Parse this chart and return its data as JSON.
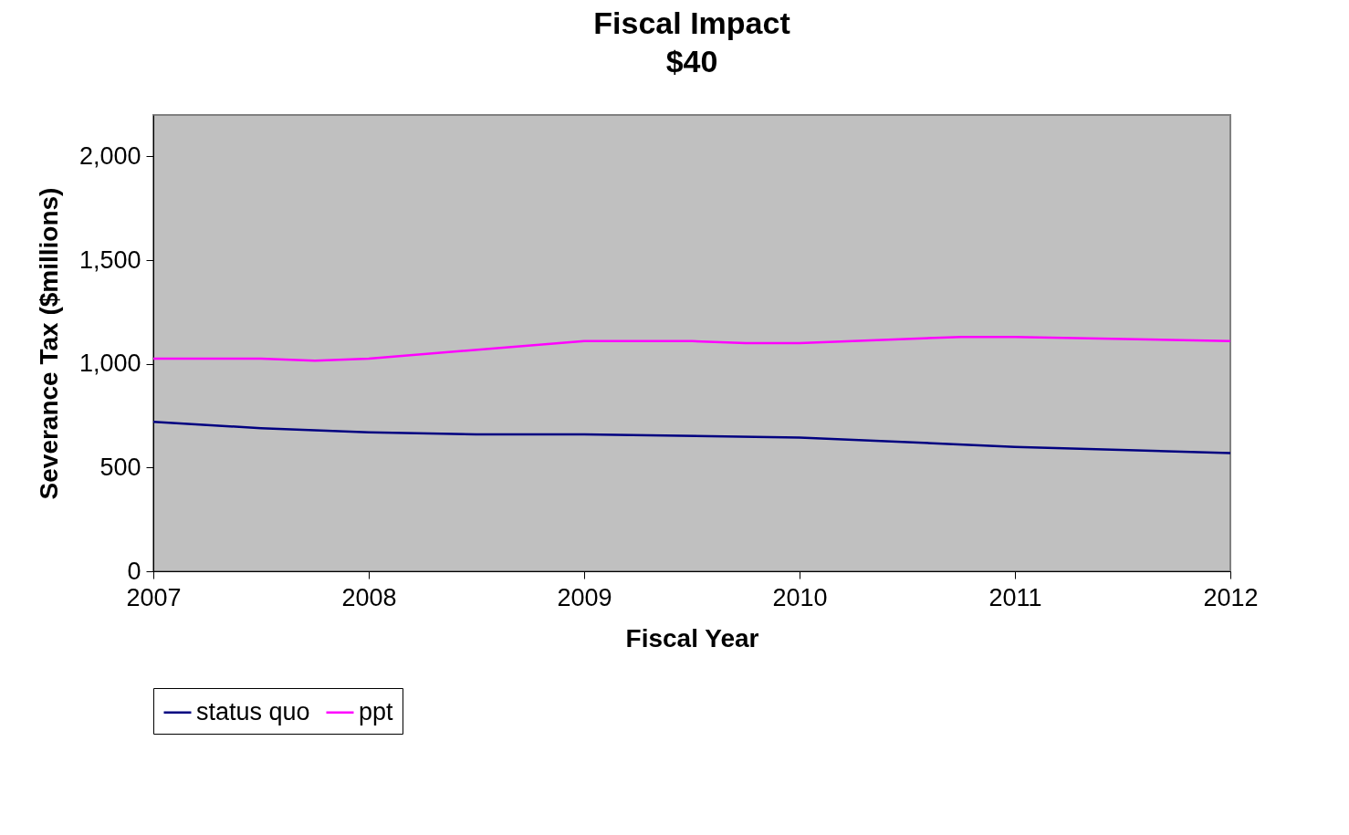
{
  "chart_data": {
    "type": "line",
    "title": "Fiscal Impact",
    "subtitle": "$40",
    "xlabel": "Fiscal Year",
    "ylabel": "Severance Tax ($millions)",
    "xlim": [
      2007,
      2012
    ],
    "xticks": [
      2007,
      2008,
      2009,
      2010,
      2011,
      2012
    ],
    "ylim": [
      0,
      2200
    ],
    "yticks": [
      0,
      {
        "value": 500,
        "label": "500"
      },
      {
        "value": 1000,
        "label": "1,000"
      },
      {
        "value": 1500,
        "label": "1,500"
      },
      {
        "value": 2000,
        "label": "2,000"
      }
    ],
    "grid": false,
    "legend": "bottom",
    "series": [
      {
        "name": "status quo",
        "color": "#000080",
        "x": [
          2007,
          2007.5,
          2008,
          2008.5,
          2009,
          2010,
          2011,
          2012
        ],
        "values": [
          720,
          690,
          670,
          660,
          660,
          645,
          600,
          570
        ]
      },
      {
        "name": "ppt",
        "color": "#ff00ff",
        "x": [
          2007,
          2007.5,
          2007.75,
          2008,
          2009,
          2009.5,
          2009.75,
          2010,
          2010.75,
          2011,
          2012
        ],
        "values": [
          1025,
          1025,
          1015,
          1025,
          1110,
          1110,
          1100,
          1100,
          1130,
          1130,
          1110
        ]
      }
    ]
  }
}
